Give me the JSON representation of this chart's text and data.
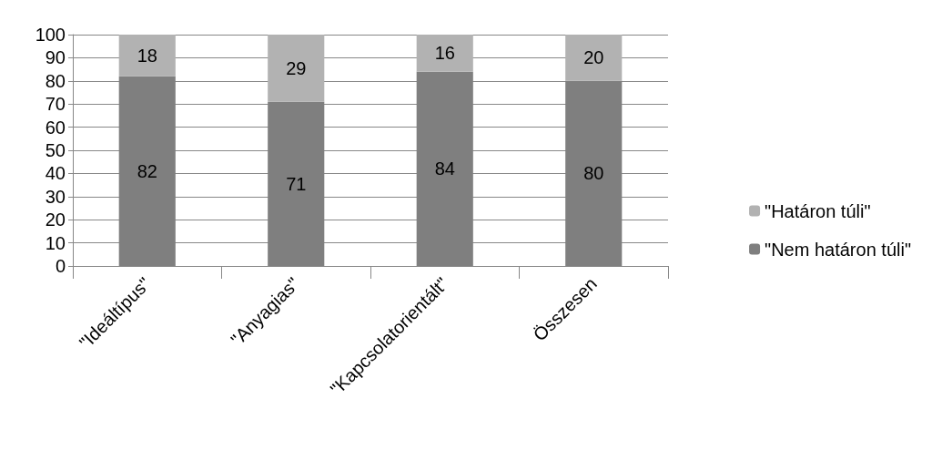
{
  "chart_data": {
    "type": "bar",
    "stacked": true,
    "categories": [
      "\"Ideáltípus\"",
      "\"Anyagias\"",
      "\"Kapcsolatorientált\"",
      "Összesen"
    ],
    "series": [
      {
        "name": "\"Nem határon túli\"",
        "color": "#7f7f7f",
        "values": [
          82,
          71,
          84,
          80
        ]
      },
      {
        "name": "\"Határon túli\"",
        "color": "#b2b2b2",
        "values": [
          18,
          29,
          16,
          20
        ]
      }
    ],
    "ylim": [
      0,
      100
    ],
    "yticks": [
      0,
      10,
      20,
      30,
      40,
      50,
      60,
      70,
      80,
      90,
      100
    ],
    "grid": "y",
    "legend": "right",
    "data_labels": true
  }
}
